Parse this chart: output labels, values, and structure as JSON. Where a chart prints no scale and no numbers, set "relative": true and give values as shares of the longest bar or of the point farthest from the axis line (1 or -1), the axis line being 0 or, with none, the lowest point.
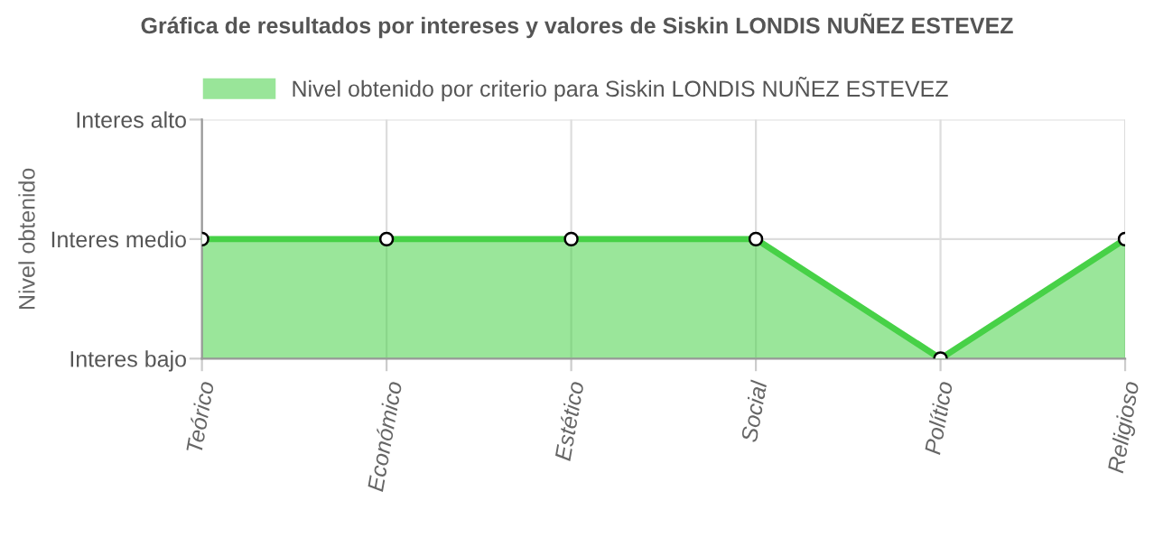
{
  "chart_data": {
    "type": "area",
    "title": "Gráfica de resultados por intereses y valores de Siskin LONDIS NUÑEZ ESTEVEZ",
    "categories": [
      "Teórico",
      "Económico",
      "Estético",
      "Social",
      "Político",
      "Religioso"
    ],
    "series": [
      {
        "name": "Nivel obtenido por criterio para Siskin LONDIS NUÑEZ ESTEVEZ",
        "color": "#47d147",
        "values": [
          1,
          1,
          1,
          1,
          0,
          1
        ]
      }
    ],
    "relative": true,
    "annotations": [
      "Nivel obtenido",
      "Interes bajo",
      "Interes medio",
      "Interes alto"
    ],
    "grid": true,
    "legend": "top",
    "marker": "circle"
  }
}
